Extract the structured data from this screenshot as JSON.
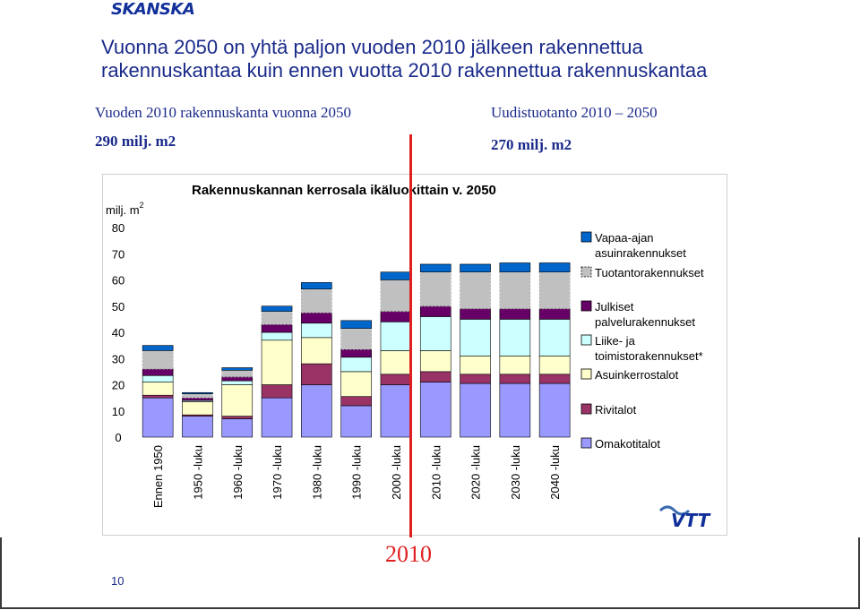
{
  "header": {
    "logo_text": "SKANSKA",
    "title_line1": "Vuonna 2050 on yhtä paljon vuoden 2010 jälkeen rakennettua",
    "title_line2": "rakennuskantaa kuin ennen vuotta 2010 rakennettua rakennuskantaa"
  },
  "left_info": {
    "label": "Vuoden 2010 rakennuskanta vuonna 2050",
    "value": "290 milj. m2"
  },
  "right_info": {
    "label": "Uudistuotanto  2010 – 2050",
    "value": "270 milj. m2"
  },
  "footer": {
    "year": "2010",
    "page_number": "10"
  },
  "vtt_logo_text": "VTT",
  "colors": {
    "omakotitalot": "#9999ff",
    "rivitalot": "#993366",
    "asuinkerrostalot": "#ffffcc",
    "liike": "#ccffff",
    "julkiset": "#660066",
    "tuotanto": "#c0c0c0",
    "vapaa": "#0066cc",
    "red_line": "#e02020"
  },
  "chart_data": {
    "type": "bar",
    "stacked": true,
    "title": "Rakennuskannan kerrosala ikäluokittain v. 2050",
    "ylabel": "milj. m",
    "ylabel_superscript": "2",
    "ylim": [
      0,
      80
    ],
    "yticks": [
      0,
      10,
      20,
      30,
      40,
      50,
      60,
      70,
      80
    ],
    "legend_position": "right",
    "categories": [
      "Ennen 1950",
      "1950 -luku",
      "1960 -luku",
      "1970 -luku",
      "1980 -luku",
      "1990 -luku",
      "2000 -luku",
      "2010 -luku",
      "2020 -luku",
      "2030 -luku",
      "2040 -luku"
    ],
    "series": [
      {
        "name": "Omakotitalot",
        "key": "omakotitalot",
        "values": [
          15,
          8,
          7,
          15,
          20,
          12,
          20,
          21,
          20.5,
          20.5,
          20.5
        ]
      },
      {
        "name": "Rivitalot",
        "key": "rivitalot",
        "values": [
          1,
          0.5,
          1,
          5,
          8,
          3.5,
          4,
          4,
          3.5,
          3.5,
          3.5
        ]
      },
      {
        "name": "Asuinkerrostalot",
        "key": "asuinkerrostalot",
        "values": [
          5,
          5,
          12,
          17,
          10,
          9.5,
          9,
          8,
          7,
          7,
          7
        ]
      },
      {
        "name": "Liike- ja toimistorakennukset*",
        "key": "liike",
        "values": [
          2.5,
          0.5,
          1.5,
          3,
          5.5,
          5.5,
          11,
          13,
          14,
          14,
          14
        ]
      },
      {
        "name": "Julkiset palvelurakennukset",
        "key": "julkiset",
        "values": [
          2.5,
          1,
          1.5,
          3,
          4,
          3,
          4,
          4,
          4,
          4,
          4
        ]
      },
      {
        "name": "Tuotantorakennukset",
        "key": "tuotanto",
        "values": [
          7,
          1.5,
          2.5,
          5,
          9,
          8,
          12,
          13,
          14,
          14,
          14
        ]
      },
      {
        "name": "Vapaa-ajan asuinrakennukset",
        "key": "vapaa",
        "values": [
          2,
          0.5,
          1,
          2,
          2.5,
          3,
          3,
          3,
          3,
          3.5,
          3.5
        ]
      }
    ]
  }
}
